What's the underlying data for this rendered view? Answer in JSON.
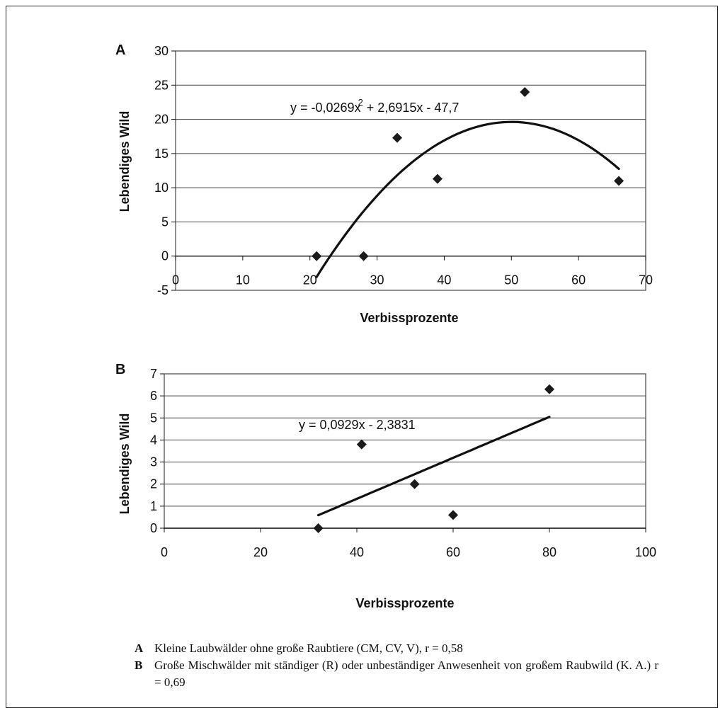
{
  "chart_data": [
    {
      "id": "A",
      "type": "scatter",
      "panel_label": "A",
      "xlabel": "Verbissprozente",
      "ylabel": "Lebendiges Wild",
      "xlim": [
        0,
        70
      ],
      "ylim": [
        -5,
        30
      ],
      "xticks": [
        0,
        10,
        20,
        30,
        40,
        50,
        60,
        70
      ],
      "yticks": [
        -5,
        0,
        5,
        10,
        15,
        20,
        25,
        30
      ],
      "grid": "horizontal",
      "points": [
        {
          "x": 21,
          "y": 0
        },
        {
          "x": 28,
          "y": 0
        },
        {
          "x": 33,
          "y": 17.3
        },
        {
          "x": 39,
          "y": 11.3
        },
        {
          "x": 52,
          "y": 24
        },
        {
          "x": 66,
          "y": 11
        }
      ],
      "trendline": {
        "kind": "polynomial",
        "coefficients": [
          -47.7,
          2.6915,
          -0.0269
        ],
        "x_range": [
          21,
          66
        ]
      },
      "equation": {
        "main": "y = -0,0269x",
        "sup": "2",
        "rest": " + 2,6915x - 47,7"
      }
    },
    {
      "id": "B",
      "type": "scatter",
      "panel_label": "B",
      "xlabel": "Verbissprozente",
      "ylabel": "Lebendiges Wild",
      "xlim": [
        0,
        100
      ],
      "ylim": [
        0,
        7
      ],
      "xticks": [
        0,
        20,
        40,
        60,
        80,
        100
      ],
      "yticks": [
        0,
        1,
        2,
        3,
        4,
        5,
        6,
        7
      ],
      "grid": "horizontal",
      "points": [
        {
          "x": 32,
          "y": 0
        },
        {
          "x": 41,
          "y": 3.8
        },
        {
          "x": 52,
          "y": 2
        },
        {
          "x": 60,
          "y": 0.6
        },
        {
          "x": 80,
          "y": 6.3
        }
      ],
      "trendline": {
        "kind": "linear",
        "coefficients": [
          -2.3831,
          0.0929
        ],
        "x_range": [
          32,
          80
        ]
      },
      "equation": {
        "main": "y = 0,0929x - 2,3831",
        "sup": "",
        "rest": ""
      }
    }
  ],
  "caption": {
    "a_key": "A",
    "a_text": "Kleine Laubwälder ohne große Raubtiere (CM, CV, V),   r = 0,58",
    "b_key": "B",
    "b_text": "Große Mischwälder mit ständiger (R) oder unbeständiger Anwesenheit von großem Raubwild (K. A.) r = 0,69"
  },
  "colors": {
    "ink": "#111111",
    "grid": "#444444",
    "marker": "#1a1a1a"
  }
}
